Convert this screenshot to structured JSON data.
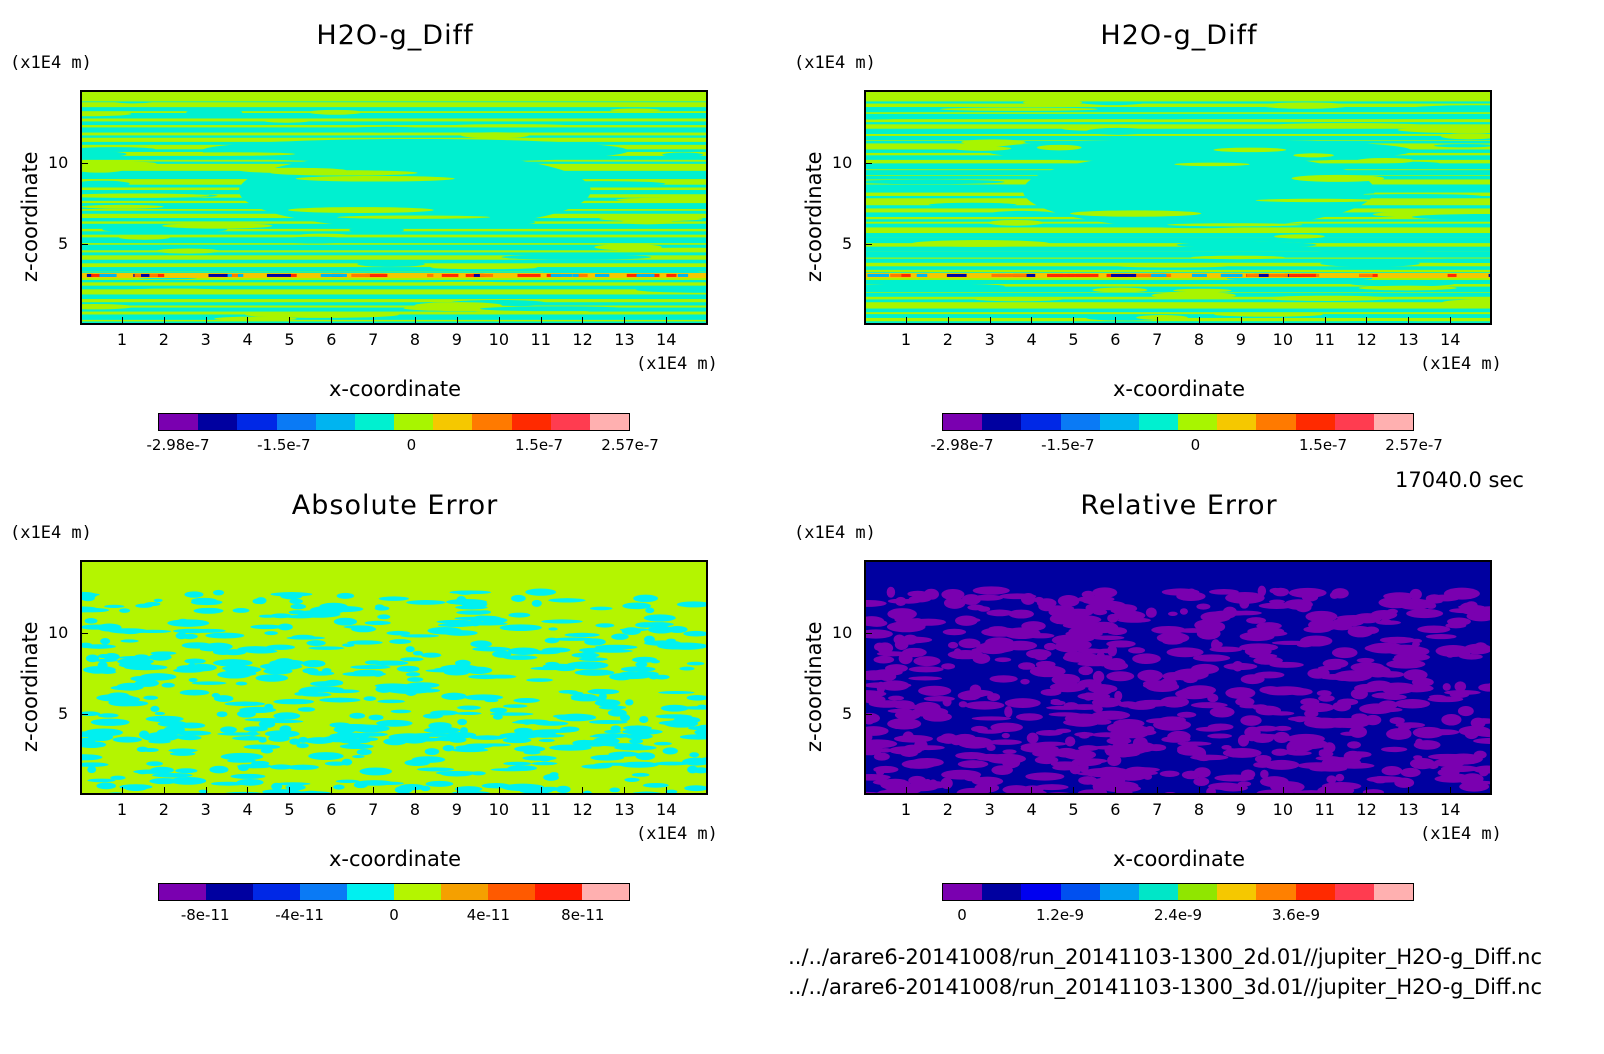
{
  "chart_data": [
    {
      "type": "heatmap",
      "title": "H2O-g_Diff",
      "xlabel": "x-coordinate",
      "ylabel": "z-coordinate",
      "x_unit": "(x1E4 m)",
      "y_unit": "(x1E4 m)",
      "x_ticks": [
        "1",
        "2",
        "3",
        "4",
        "5",
        "6",
        "7",
        "8",
        "9",
        "10",
        "11",
        "12",
        "13",
        "14"
      ],
      "y_ticks": [
        "5",
        "10"
      ],
      "xlim": [
        0,
        15
      ],
      "ylim": [
        0,
        14.5
      ],
      "colorbar": {
        "colors": [
          "#7a00b0",
          "#0000a0",
          "#0028e6",
          "#0a7af5",
          "#00b4f0",
          "#00f0d0",
          "#a8f500",
          "#f5c800",
          "#ff7a00",
          "#ff2a00",
          "#ff3c50",
          "#ffb0b0"
        ],
        "labels": [
          "-2.98e-7",
          "-1.5e-7",
          "0",
          "1.5e-7",
          "2.57e-7"
        ],
        "range": [
          -2.98e-07,
          2.57e-07
        ]
      }
    },
    {
      "type": "heatmap",
      "title": "H2O-g_Diff",
      "xlabel": "x-coordinate",
      "ylabel": "z-coordinate",
      "x_unit": "(x1E4 m)",
      "y_unit": "(x1E4 m)",
      "x_ticks": [
        "1",
        "2",
        "3",
        "4",
        "5",
        "6",
        "7",
        "8",
        "9",
        "10",
        "11",
        "12",
        "13",
        "14"
      ],
      "y_ticks": [
        "5",
        "10"
      ],
      "xlim": [
        0,
        15
      ],
      "ylim": [
        0,
        14.5
      ],
      "colorbar": {
        "colors": [
          "#7a00b0",
          "#0000a0",
          "#0028e6",
          "#0a7af5",
          "#00b4f0",
          "#00f0d0",
          "#a8f500",
          "#f5c800",
          "#ff7a00",
          "#ff2a00",
          "#ff3c50",
          "#ffb0b0"
        ],
        "labels": [
          "-2.98e-7",
          "-1.5e-7",
          "0",
          "1.5e-7",
          "2.57e-7"
        ],
        "range": [
          -2.98e-07,
          2.57e-07
        ]
      }
    },
    {
      "type": "heatmap",
      "title": "Absolute Error",
      "xlabel": "x-coordinate",
      "ylabel": "z-coordinate",
      "x_unit": "(x1E4 m)",
      "y_unit": "(x1E4 m)",
      "x_ticks": [
        "1",
        "2",
        "3",
        "4",
        "5",
        "6",
        "7",
        "8",
        "9",
        "10",
        "11",
        "12",
        "13",
        "14"
      ],
      "y_ticks": [
        "5",
        "10"
      ],
      "xlim": [
        0,
        15
      ],
      "ylim": [
        0,
        14.5
      ],
      "colorbar": {
        "colors": [
          "#7a00b0",
          "#0000a0",
          "#0028e6",
          "#0a7af5",
          "#00f0f0",
          "#b4f500",
          "#f5a000",
          "#ff5a00",
          "#ff1a00",
          "#ffb0b0"
        ],
        "labels": [
          "-8e-11",
          "-4e-11",
          "0",
          "4e-11",
          "8e-11"
        ],
        "range": [
          -1e-10,
          1e-10
        ]
      }
    },
    {
      "type": "heatmap",
      "title": "Relative Error",
      "xlabel": "x-coordinate",
      "ylabel": "z-coordinate",
      "x_unit": "(x1E4 m)",
      "y_unit": "(x1E4 m)",
      "x_ticks": [
        "1",
        "2",
        "3",
        "4",
        "5",
        "6",
        "7",
        "8",
        "9",
        "10",
        "11",
        "12",
        "13",
        "14"
      ],
      "y_ticks": [
        "5",
        "10"
      ],
      "xlim": [
        0,
        15
      ],
      "ylim": [
        0,
        14.5
      ],
      "colorbar": {
        "colors": [
          "#7a00b0",
          "#0000a0",
          "#0000f0",
          "#0050f0",
          "#00a0f0",
          "#00e6c8",
          "#90e600",
          "#f5c800",
          "#ff8000",
          "#ff2a00",
          "#ff3c50",
          "#ffb0b0"
        ],
        "labels": [
          "0",
          "1.2e-9",
          "2.4e-9",
          "3.6e-9"
        ],
        "range": [
          0,
          4.8e-09
        ]
      }
    }
  ],
  "time_label": "17040.0 sec",
  "files": [
    "../../arare6-20141008/run_20141103-1300_2d.01//jupiter_H2O-g_Diff.nc",
    "../../arare6-20141008/run_20141103-1300_3d.01//jupiter_H2O-g_Diff.nc"
  ]
}
